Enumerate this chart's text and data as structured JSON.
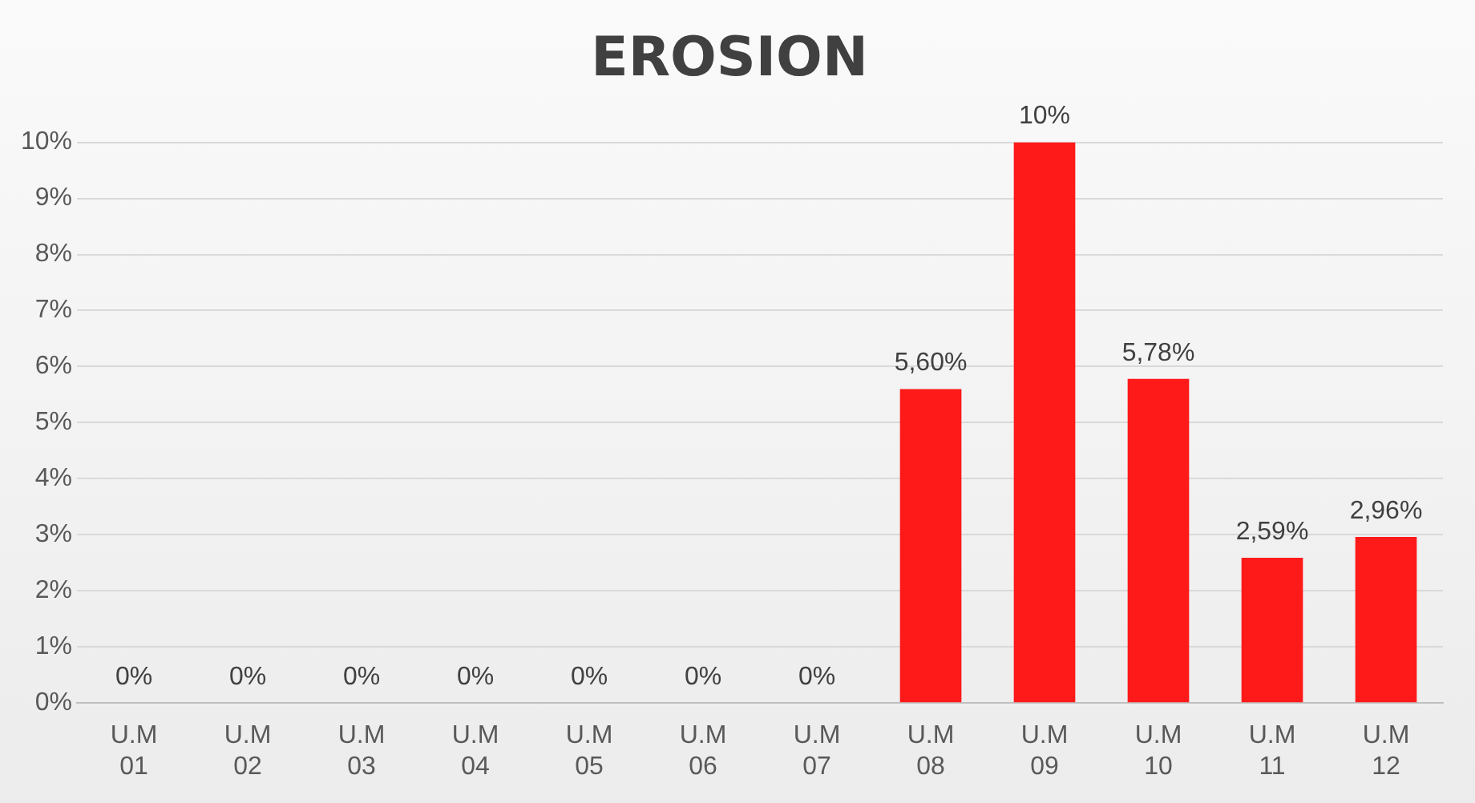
{
  "chart_data": {
    "type": "bar",
    "title": "EROSION",
    "categories": [
      "U.M 01",
      "U.M 02",
      "U.M 03",
      "U.M 04",
      "U.M 05",
      "U.M 06",
      "U.M 07",
      "U.M 08",
      "U.M 09",
      "U.M 10",
      "U.M 11",
      "U.M 12"
    ],
    "values": [
      0,
      0,
      0,
      0,
      0,
      0,
      0,
      5.6,
      10,
      5.78,
      2.59,
      2.96
    ],
    "value_labels": [
      "0%",
      "0%",
      "0%",
      "0%",
      "0%",
      "0%",
      "0%",
      "5,60%",
      "10%",
      "5,78%",
      "2,59%",
      "2,96%"
    ],
    "color": "#ff1a1a",
    "ylim": [
      0,
      10
    ],
    "yticks": [
      {
        "value": 0,
        "label": "0%"
      },
      {
        "value": 1,
        "label": "1%"
      },
      {
        "value": 2,
        "label": "2%"
      },
      {
        "value": 3,
        "label": "3%"
      },
      {
        "value": 4,
        "label": "4%"
      },
      {
        "value": 5,
        "label": "5%"
      },
      {
        "value": 6,
        "label": "6%"
      },
      {
        "value": 7,
        "label": "7%"
      },
      {
        "value": 8,
        "label": "8%"
      },
      {
        "value": 9,
        "label": "9%"
      },
      {
        "value": 10,
        "label": "10%"
      }
    ],
    "grid": true
  }
}
